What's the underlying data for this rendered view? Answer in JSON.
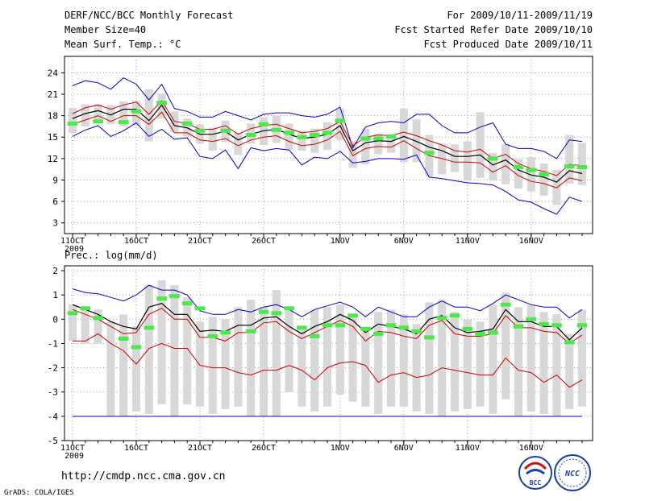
{
  "header": {
    "title": "DERF/NCC/BCC Monthly Forecast",
    "member_size": "Member Size=40",
    "variable": "Mean Surf. Temp.: °C",
    "period": "For 2009/10/11-2009/11/19",
    "refer_date": "Fcst Started Refer Date 2009/10/10",
    "produced_date": "Fcst Produced Date 2009/10/11"
  },
  "footer": {
    "url": "http://cmdp.ncc.cma.gov.cn",
    "grads": "GrADS: COLA/IGES",
    "logo_bcc": "BCC",
    "logo_ncc": "NCC"
  },
  "colors": {
    "upper": "#0000cc",
    "mean": "#000000",
    "spread": "#cc0000",
    "bar": "#d8d8d8",
    "obs": "#4ce84c",
    "min": "#0000cc"
  },
  "chart_data": [
    {
      "type": "line",
      "title": "Mean Surf. Temp.: °C",
      "xlabel": "",
      "ylabel": "°C",
      "ylim": [
        1.5,
        26.3
      ],
      "yticks": [
        3,
        6,
        9,
        12,
        15,
        18,
        21,
        24
      ],
      "x_days": 40,
      "xticks": [
        {
          "day": 0,
          "label": "11OCT"
        },
        {
          "day": 5,
          "label": "16OCT"
        },
        {
          "day": 10,
          "label": "21OCT"
        },
        {
          "day": 15,
          "label": "26OCT"
        },
        {
          "day": 21,
          "label": "1NOV"
        },
        {
          "day": 26,
          "label": "6NOV"
        },
        {
          "day": 31,
          "label": "11NOV"
        },
        {
          "day": 36,
          "label": "16NOV"
        }
      ],
      "year_label": "2009",
      "series": {
        "max": [
          22.2,
          22.9,
          22.6,
          21.7,
          23.3,
          22.4,
          20.2,
          22.4,
          19.0,
          18.6,
          17.8,
          17.8,
          18.6,
          18.0,
          17.4,
          18.2,
          18.4,
          18.4,
          18.0,
          17.8,
          18.2,
          19.2,
          13.5,
          16.4,
          17.0,
          17.2,
          17.0,
          18.2,
          18.2,
          16.6,
          15.6,
          15.6,
          16.4,
          17.0,
          14.0,
          13.4,
          13.4,
          13.0,
          12.0,
          14.6,
          14.4
        ],
        "upper": [
          18.3,
          19.1,
          19.5,
          18.9,
          19.5,
          19.9,
          18.2,
          20.1,
          17.2,
          16.9,
          16.1,
          16.1,
          16.6,
          15.4,
          16.2,
          16.6,
          16.8,
          16.2,
          15.6,
          15.8,
          16.2,
          17.2,
          13.8,
          15.0,
          15.3,
          15.2,
          15.7,
          15.2,
          14.5,
          13.9,
          13.1,
          12.9,
          13.3,
          12.0,
          12.6,
          11.3,
          10.6,
          10.2,
          9.6,
          11.2,
          11.0
        ],
        "mean": [
          17.6,
          18.3,
          18.7,
          18.1,
          18.9,
          18.9,
          17.3,
          19.5,
          16.6,
          16.3,
          15.4,
          15.4,
          15.8,
          14.6,
          15.4,
          15.9,
          16.1,
          15.4,
          14.8,
          15.0,
          15.4,
          16.6,
          13.1,
          14.2,
          14.5,
          14.4,
          15.1,
          14.4,
          13.6,
          13.1,
          12.3,
          12.3,
          12.5,
          11.1,
          11.8,
          10.4,
          9.7,
          9.4,
          8.7,
          10.3,
          9.9
        ],
        "lower": [
          16.8,
          17.4,
          18.0,
          17.2,
          18.0,
          18.0,
          16.8,
          18.5,
          15.6,
          15.6,
          14.6,
          14.4,
          14.8,
          13.8,
          14.6,
          15.0,
          15.2,
          14.4,
          13.8,
          14.0,
          14.6,
          15.8,
          12.4,
          13.4,
          13.7,
          13.6,
          14.5,
          13.4,
          12.4,
          12.0,
          11.5,
          11.5,
          11.4,
          10.1,
          11.0,
          9.6,
          8.8,
          8.5,
          7.9,
          9.3,
          8.9
        ],
        "min": [
          15.1,
          16.0,
          16.6,
          15.1,
          15.9,
          17.0,
          15.1,
          16.1,
          14.7,
          14.9,
          12.3,
          12.0,
          13.2,
          10.6,
          13.5,
          13.1,
          13.4,
          13.2,
          11.1,
          12.2,
          12.0,
          13.0,
          11.4,
          11.6,
          12.0,
          12.0,
          11.9,
          12.5,
          9.4,
          9.2,
          8.9,
          8.6,
          8.5,
          8.3,
          7.4,
          6.2,
          5.9,
          5.0,
          4.2,
          6.6,
          6.0
        ],
        "bar_top": [
          19.1,
          19.6,
          19.6,
          19.5,
          20.0,
          20.1,
          21.7,
          21.1,
          18.6,
          17.6,
          16.8,
          16.3,
          17.3,
          15.6,
          16.9,
          17.8,
          18.0,
          16.9,
          15.9,
          16.2,
          17.1,
          19.0,
          14.4,
          16.2,
          15.5,
          15.4,
          19.0,
          17.5,
          15.3,
          14.1,
          14.0,
          14.4,
          18.5,
          12.8,
          14.0,
          11.9,
          12.2,
          11.3,
          10.4,
          15.3,
          14.2
        ],
        "bar_bottom": [
          15.6,
          16.5,
          17.1,
          16.8,
          16.5,
          16.6,
          14.4,
          17.6,
          15.7,
          15.1,
          14.1,
          13.1,
          14.3,
          12.5,
          14.1,
          13.9,
          14.2,
          13.2,
          13.1,
          12.8,
          13.2,
          14.6,
          10.7,
          11.2,
          12.6,
          12.8,
          11.5,
          11.5,
          9.5,
          9.8,
          10.1,
          8.9,
          9.3,
          8.9,
          8.4,
          7.8,
          7.4,
          6.8,
          5.5,
          8.5,
          8.3
        ],
        "obs": [
          16.9,
          null,
          17.2,
          null,
          17.1,
          18.6,
          null,
          19.8,
          null,
          16.9,
          15.9,
          null,
          15.9,
          null,
          15.3,
          16.8,
          16.0,
          15.6,
          15.0,
          15.3,
          15.6,
          17.3,
          null,
          14.8,
          14.8,
          15.1,
          null,
          null,
          12.8,
          null,
          null,
          null,
          null,
          12.0,
          null,
          10.8,
          10.4,
          9.8,
          null,
          10.9,
          10.8
        ]
      }
    },
    {
      "type": "line",
      "title": "Prec.: log(mm/d)",
      "xlabel": "",
      "ylabel": "log(mm/d)",
      "ylim": [
        -5,
        2.2
      ],
      "yticks": [
        -5,
        -4,
        -3,
        -2,
        -1,
        0,
        1,
        2
      ],
      "x_days": 40,
      "xticks": [
        {
          "day": 0,
          "label": "11OCT"
        },
        {
          "day": 5,
          "label": "16OCT"
        },
        {
          "day": 10,
          "label": "21OCT"
        },
        {
          "day": 15,
          "label": "26OCT"
        },
        {
          "day": 21,
          "label": "1NOV"
        },
        {
          "day": 26,
          "label": "6NOV"
        },
        {
          "day": 31,
          "label": "11NOV"
        },
        {
          "day": 36,
          "label": "16NOV"
        }
      ],
      "year_label": "2009",
      "series": {
        "upper": [
          1.25,
          1.1,
          1.05,
          0.9,
          0.75,
          1.0,
          1.4,
          1.2,
          1.2,
          1.0,
          0.35,
          0.2,
          0.2,
          0.4,
          0.3,
          0.5,
          0.6,
          0.4,
          0.1,
          0.4,
          0.55,
          0.7,
          0.5,
          0.1,
          0.5,
          0.3,
          0.1,
          0.1,
          0.5,
          0.75,
          0.5,
          0.5,
          0.35,
          0.65,
          1.0,
          0.8,
          0.6,
          0.5,
          0.5,
          0.05,
          0.4
        ],
        "mean": [
          0.6,
          0.4,
          0.2,
          -0.1,
          -0.3,
          -0.4,
          0.5,
          0.65,
          0.2,
          0.2,
          -0.5,
          -0.45,
          -0.5,
          -0.25,
          -0.25,
          0.05,
          0.1,
          -0.3,
          -0.6,
          -0.3,
          -0.1,
          0.2,
          -0.05,
          -0.55,
          -0.2,
          -0.3,
          -0.4,
          -0.6,
          0.0,
          0.15,
          -0.35,
          -0.55,
          -0.5,
          -0.4,
          0.4,
          -0.1,
          -0.1,
          -0.3,
          -0.3,
          -0.85,
          -0.35
        ],
        "spread": [
          0.4,
          0.2,
          0.0,
          -0.3,
          -0.6,
          -0.55,
          0.2,
          0.45,
          0.0,
          0.0,
          -0.75,
          -0.75,
          -0.9,
          -0.55,
          -0.55,
          -0.15,
          -0.1,
          -0.5,
          -0.8,
          -0.55,
          -0.3,
          -0.05,
          -0.3,
          -0.9,
          -0.5,
          -0.55,
          -0.7,
          -0.8,
          -0.25,
          -0.05,
          -0.6,
          -0.7,
          -0.7,
          -0.6,
          0.15,
          -0.35,
          -0.35,
          -0.5,
          -0.55,
          -1.0,
          -0.65
        ],
        "lower": [
          -0.9,
          -0.9,
          -0.6,
          -1.0,
          -1.3,
          -1.85,
          -1.2,
          -1.0,
          -1.2,
          -1.2,
          -1.9,
          -2.0,
          -2.0,
          -2.2,
          -2.3,
          -2.1,
          -2.1,
          -1.9,
          -2.1,
          -2.5,
          -2.0,
          -1.8,
          -1.75,
          -1.9,
          -2.6,
          -2.3,
          -2.2,
          -2.4,
          -2.3,
          -2.0,
          -2.1,
          -2.2,
          -2.3,
          -2.3,
          -1.6,
          -2.1,
          -2.2,
          -2.6,
          -2.3,
          -2.8,
          -2.5
        ],
        "min": [
          -4.0,
          -4.0,
          -4.0,
          -4.0,
          -4.0,
          -4.0,
          -4.0,
          -4.0,
          -4.0,
          -4.0,
          -4.0,
          -4.0,
          -4.0,
          -4.0,
          -4.0,
          -4.0,
          -4.0,
          -4.0,
          -4.0,
          -4.0,
          -4.0,
          -4.0,
          -4.0,
          -4.0,
          -4.0,
          -4.0,
          -4.0,
          -4.0,
          -4.0,
          -4.0,
          -4.0,
          -4.0,
          -4.0,
          -4.0,
          -4.0,
          -4.0,
          -4.0,
          -4.0,
          -4.0,
          -4.0,
          -4.0
        ],
        "bar_top": [
          0.6,
          0.5,
          0.4,
          -0.1,
          0.2,
          -0.3,
          1.4,
          1.6,
          1.4,
          0.9,
          -0.1,
          0.1,
          0.0,
          0.5,
          0.8,
          0.5,
          1.2,
          0.5,
          -0.3,
          0.4,
          0.5,
          0.6,
          0.2,
          -0.4,
          0.3,
          0.4,
          0.2,
          -0.2,
          0.7,
          0.8,
          0.3,
          0.0,
          -0.1,
          0.6,
          1.1,
          0.5,
          0.6,
          0.3,
          0.2,
          -0.6,
          0.4
        ],
        "bar_bottom": [
          -0.9,
          -1.0,
          -1.0,
          -4.0,
          -4.0,
          -3.8,
          -3.9,
          -3.5,
          -4.0,
          -3.5,
          -3.6,
          -3.9,
          -3.7,
          -3.6,
          -4.0,
          -4.0,
          -4.0,
          -3.0,
          -3.6,
          -3.8,
          -3.6,
          -3.1,
          -3.4,
          -3.6,
          -3.9,
          -3.6,
          -3.6,
          -3.8,
          -3.9,
          -4.0,
          -3.8,
          -3.7,
          -3.6,
          -3.9,
          -3.3,
          -4.0,
          -3.8,
          -3.9,
          -4.0,
          -3.7,
          -3.6
        ],
        "obs": [
          0.25,
          0.45,
          0.05,
          null,
          -0.8,
          -1.15,
          -0.35,
          0.85,
          0.95,
          0.65,
          0.45,
          -0.7,
          -0.55,
          null,
          -0.5,
          0.3,
          0.25,
          0.45,
          -0.35,
          -0.7,
          -0.25,
          -0.25,
          0.15,
          -0.4,
          -0.6,
          -0.25,
          -0.35,
          -0.5,
          -0.75,
          0.05,
          0.15,
          -0.4,
          -0.6,
          -0.55,
          0.6,
          -0.3,
          0.0,
          -0.2,
          -0.25,
          -0.95,
          -0.25
        ]
      }
    }
  ]
}
